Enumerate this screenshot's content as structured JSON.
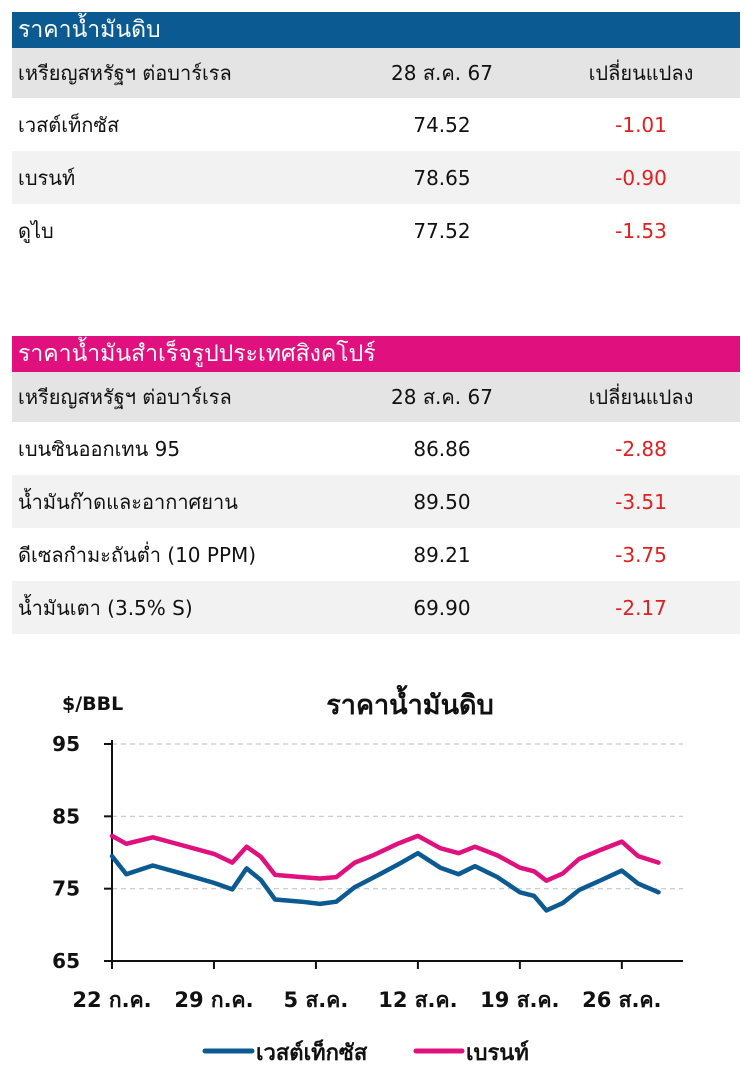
{
  "crude": {
    "title": "ราคาน้ำมันดิบ",
    "header": {
      "name": "เหรียญสหรัฐฯ ต่อบาร์เรล",
      "date": "28 ส.ค. 67",
      "change": "เปลี่ยนแปลง"
    },
    "rows": [
      {
        "name": "เวสต์เท็กซัส",
        "price": "74.52",
        "change": "-1.01"
      },
      {
        "name": "เบรนท์",
        "price": "78.65",
        "change": "-0.90"
      },
      {
        "name": "ดูไบ",
        "price": "77.52",
        "change": "-1.53"
      }
    ]
  },
  "singapore": {
    "title": "ราคาน้ำมันสำเร็จรูปประเทศสิงคโปร์",
    "header": {
      "name": "เหรียญสหรัฐฯ ต่อบาร์เรล",
      "date": "28 ส.ค. 67",
      "change": "เปลี่ยนแปลง"
    },
    "rows": [
      {
        "name": "เบนซินออกเทน 95",
        "price": "86.86",
        "change": "-2.88"
      },
      {
        "name": "น้ำมันก๊าดและอากาศยาน",
        "price": "89.50",
        "change": "-3.51"
      },
      {
        "name": "ดีเซลกำมะถันต่ำ (10 PPM)",
        "price": "89.21",
        "change": "-3.75"
      },
      {
        "name": "น้ำมันเตา (3.5% S)",
        "price": "69.90",
        "change": "-2.17"
      }
    ]
  },
  "colors": {
    "wti": "#0b5a92",
    "brent": "#e0117f"
  },
  "chart_data": {
    "type": "line",
    "title": "ราคาน้ำมันดิบ",
    "ylabel": "$/BBL",
    "ylim": [
      65,
      95
    ],
    "yticks": [
      65,
      75,
      85,
      95
    ],
    "xlim": [
      0,
      28
    ],
    "xticks": [
      {
        "pos": 0,
        "label": "22 ก.ค."
      },
      {
        "pos": 5,
        "label": "29 ก.ค."
      },
      {
        "pos": 10,
        "label": "5 ส.ค."
      },
      {
        "pos": 15,
        "label": "12 ส.ค."
      },
      {
        "pos": 20,
        "label": "19 ส.ค."
      },
      {
        "pos": 25,
        "label": "26 ส.ค."
      }
    ],
    "grid": true,
    "legend": "bottom",
    "series": [
      {
        "name": "เวสต์เท็กซัส",
        "color": "#0b5a92",
        "x": [
          0,
          0.7,
          2,
          3.3,
          5,
          5.9,
          6.6,
          7.3,
          8,
          9.3,
          10.2,
          11,
          11.9,
          12.8,
          14,
          15,
          16.1,
          17,
          17.8,
          18.9,
          20,
          20.7,
          21.3,
          22.1,
          22.9,
          24,
          25,
          25.8,
          26.8
        ],
        "values": [
          79.5,
          77,
          78.2,
          77.2,
          75.8,
          74.9,
          77.8,
          76.2,
          73.5,
          73.2,
          72.9,
          73.2,
          75.2,
          76.5,
          78.3,
          79.9,
          77.9,
          77.0,
          78.1,
          76.6,
          74.5,
          74.0,
          72.0,
          73.0,
          74.8,
          76.2,
          77.5,
          75.7,
          74.5
        ]
      },
      {
        "name": "เบรนท์",
        "color": "#e0117f",
        "x": [
          0,
          0.7,
          2,
          3.3,
          5,
          5.9,
          6.6,
          7.3,
          8,
          9.3,
          10.2,
          11,
          11.9,
          12.8,
          14,
          15,
          16.1,
          17,
          17.8,
          18.9,
          20,
          20.7,
          21.3,
          22.1,
          22.9,
          24,
          25,
          25.8,
          26.8
        ],
        "values": [
          82.3,
          81.2,
          82.1,
          81.1,
          79.8,
          78.6,
          80.8,
          79.4,
          76.9,
          76.6,
          76.4,
          76.6,
          78.6,
          79.6,
          81.2,
          82.3,
          80.6,
          79.9,
          80.8,
          79.6,
          77.9,
          77.4,
          76.1,
          77.1,
          79.1,
          80.4,
          81.5,
          79.5,
          78.6
        ]
      }
    ]
  }
}
